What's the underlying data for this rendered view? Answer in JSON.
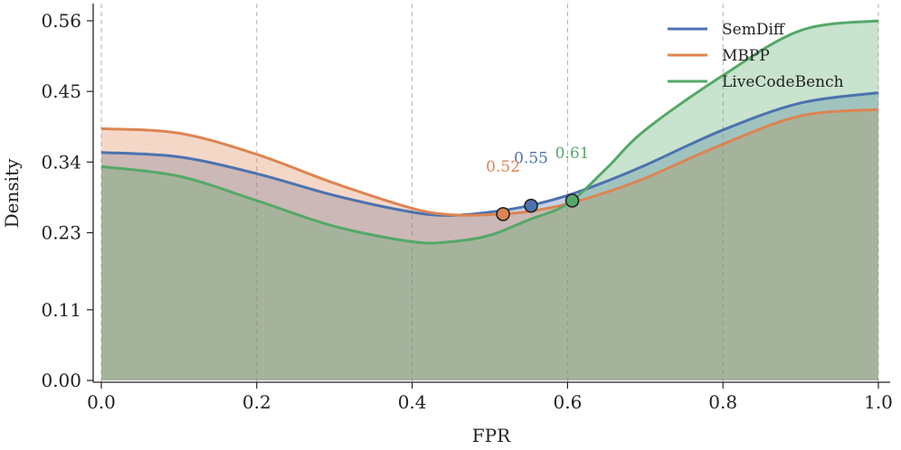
{
  "chart_data": {
    "type": "area",
    "title": "",
    "xlabel": "FPR",
    "ylabel": "Density",
    "xlim": [
      0.0,
      1.0
    ],
    "ylim": [
      0.0,
      0.56
    ],
    "xticks": [
      "0.0",
      "0.2",
      "0.4",
      "0.6",
      "0.8",
      "1.0"
    ],
    "yticks": [
      "0.00",
      "0.11",
      "0.23",
      "0.34",
      "0.45",
      "0.56"
    ],
    "grid": "vertical dashed",
    "legend_position": "top-right",
    "x": [
      0.0,
      0.1,
      0.2,
      0.3,
      0.4,
      0.45,
      0.5,
      0.55,
      0.6,
      0.65,
      0.7,
      0.8,
      0.9,
      1.0
    ],
    "series": [
      {
        "name": "SemDiff",
        "color": "#4c72b0",
        "values": [
          0.355,
          0.348,
          0.322,
          0.288,
          0.262,
          0.257,
          0.262,
          0.272,
          0.288,
          0.31,
          0.335,
          0.39,
          0.432,
          0.448
        ],
        "marker": {
          "x": 0.553,
          "y": 0.272,
          "label": "0.55"
        }
      },
      {
        "name": "MBPP",
        "color": "#dd8452",
        "values": [
          0.392,
          0.385,
          0.352,
          0.307,
          0.268,
          0.258,
          0.258,
          0.263,
          0.275,
          0.293,
          0.315,
          0.368,
          0.412,
          0.422
        ],
        "marker": {
          "x": 0.517,
          "y": 0.259,
          "label": "0.52"
        }
      },
      {
        "name": "LiveCodeBench",
        "color": "#55a868",
        "values": [
          0.333,
          0.318,
          0.28,
          0.24,
          0.216,
          0.216,
          0.226,
          0.25,
          0.275,
          0.33,
          0.39,
          0.475,
          0.545,
          0.56
        ],
        "marker": {
          "x": 0.606,
          "y": 0.28,
          "label": "0.61"
        }
      }
    ]
  }
}
